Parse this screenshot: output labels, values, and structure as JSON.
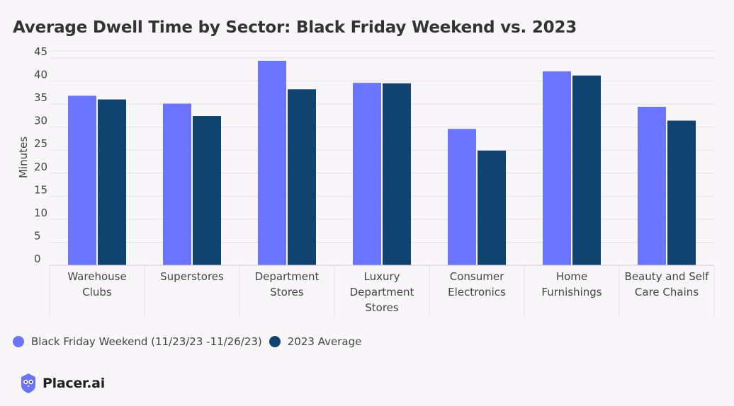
{
  "colors": {
    "series1": "#6b74ff",
    "series2": "#0f4470",
    "grid": "#e4e1e6",
    "axis_text": "#444444",
    "background": "#f9f6f9"
  },
  "logo": {
    "text": "Placer.ai",
    "icon": "placer-owl-icon"
  },
  "chart_data": {
    "type": "bar",
    "title": "Average Dwell Time by Sector: Black Friday Weekend vs. 2023",
    "ylabel": "Minutes",
    "xlabel": "",
    "ylim": [
      0,
      45
    ],
    "yticks": [
      0,
      5,
      10,
      15,
      20,
      25,
      30,
      35,
      40,
      45
    ],
    "grid": true,
    "legend_position": "bottom-left",
    "categories": [
      [
        "Warehouse",
        "Clubs"
      ],
      [
        "Superstores"
      ],
      [
        "Department",
        "Stores"
      ],
      [
        "Luxury",
        "Department",
        "Stores"
      ],
      [
        "Consumer",
        "Electronics"
      ],
      [
        "Home",
        "Furnishings"
      ],
      [
        "Beauty and Self",
        "Care Chains"
      ]
    ],
    "series": [
      {
        "name": "Black Friday Weekend (11/23/23 -11/26/23)",
        "values": [
          36.8,
          35.1,
          44.4,
          39.6,
          29.6,
          42.1,
          34.4
        ]
      },
      {
        "name": "2023 Average",
        "values": [
          36.0,
          32.4,
          38.2,
          39.5,
          24.9,
          41.2,
          31.4
        ]
      }
    ]
  }
}
